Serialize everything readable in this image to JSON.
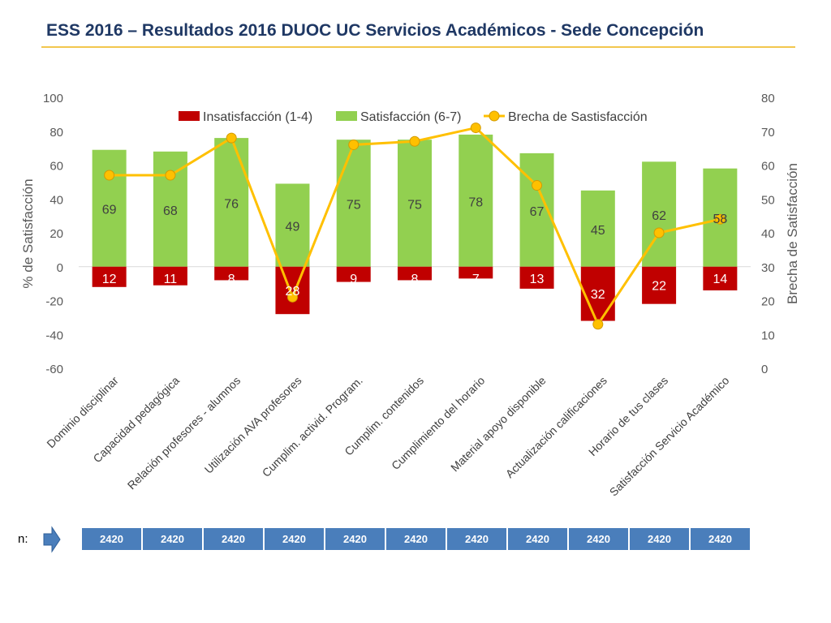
{
  "title": "ESS 2016 – Resultados 2016 DUOC UC Servicios Académicos - Sede Concepción",
  "colors": {
    "satisfaction": "#92d050",
    "dissatisfaction": "#c00000",
    "gap_line": "#ffc000",
    "n_cell": "#4a7ebb",
    "title": "#1f3864",
    "rule": "#f2c74e"
  },
  "chart_data": {
    "type": "bar",
    "categories": [
      "Dominio disciplinar",
      "Capacidad pedagógica",
      "Relación profesores - alumnos",
      "Utilización AVA profesores",
      "Cumplim. activid. Program.",
      "Cumplim. contenidos",
      "Cumplimiento del horario",
      "Material apoyo disponible",
      "Actualización calificaciones",
      "Horario de tus clases",
      "Satisfacción Servicio Académico"
    ],
    "series": [
      {
        "name": "Insatisfacción (1-4)",
        "values": [
          12,
          11,
          8,
          28,
          9,
          8,
          7,
          13,
          32,
          22,
          14
        ],
        "axis": "left",
        "kind": "bar-negative"
      },
      {
        "name": "Satisfacción (6-7)",
        "values": [
          69,
          68,
          76,
          49,
          75,
          75,
          78,
          67,
          45,
          62,
          58
        ],
        "axis": "left",
        "kind": "bar"
      },
      {
        "name": "Brecha de Sastisfacción",
        "values": [
          57,
          57,
          68,
          21,
          66,
          67,
          71,
          54,
          13,
          40,
          44
        ],
        "axis": "right",
        "kind": "line"
      }
    ],
    "ylabel": "% de Satisfacción",
    "y2label": "Brecha de Satisfacción",
    "ylim": [
      -60,
      100
    ],
    "y2lim": [
      0,
      80
    ],
    "yticks": [
      "100",
      "80",
      "60",
      "40",
      "20",
      "0",
      "-20",
      "-40",
      "-60"
    ],
    "y2ticks": [
      "80",
      "70",
      "60",
      "50",
      "40",
      "30",
      "20",
      "10",
      "0"
    ],
    "legend_position": "top"
  },
  "n_row": {
    "label": "n:",
    "arrow_icon": "right-arrow-icon",
    "values": [
      "2420",
      "2420",
      "2420",
      "2420",
      "2420",
      "2420",
      "2420",
      "2420",
      "2420",
      "2420",
      "2420"
    ]
  }
}
